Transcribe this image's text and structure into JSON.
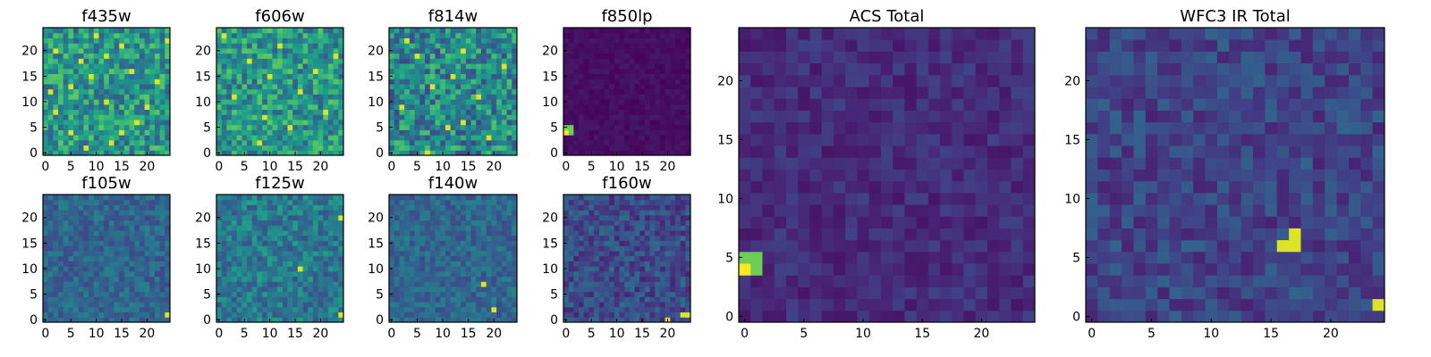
{
  "chart_data": [
    {
      "type": "heatmap",
      "title": "f435w",
      "xticks": [
        "0",
        "5",
        "10",
        "15",
        "20"
      ],
      "yticks": [
        "0",
        "5",
        "10",
        "15",
        "20"
      ],
      "xlim": [
        0,
        24
      ],
      "ylim": [
        0,
        24
      ],
      "grid": false,
      "colormap": "viridis",
      "grid_size": 25,
      "texture": "noisy-bright",
      "bright_pixels": [
        [
          1,
          8
        ],
        [
          2,
          13
        ],
        [
          4,
          5
        ],
        [
          4,
          15
        ],
        [
          6,
          18
        ],
        [
          8,
          2
        ],
        [
          9,
          20
        ],
        [
          10,
          12
        ],
        [
          12,
          1
        ],
        [
          13,
          5
        ],
        [
          14,
          22
        ],
        [
          15,
          9
        ],
        [
          16,
          17
        ],
        [
          18,
          7
        ],
        [
          19,
          12
        ],
        [
          20,
          2
        ],
        [
          21,
          15
        ],
        [
          22,
          24
        ],
        [
          23,
          10
        ]
      ]
    },
    {
      "type": "heatmap",
      "title": "f606w",
      "xticks": [
        "0",
        "5",
        "10",
        "15",
        "20"
      ],
      "yticks": [
        "0",
        "5",
        "10",
        "15",
        "20"
      ],
      "xlim": [
        0,
        24
      ],
      "ylim": [
        0,
        24
      ],
      "grid": false,
      "colormap": "viridis",
      "grid_size": 25,
      "texture": "noisy-bright",
      "bright_pixels": [
        [
          2,
          8
        ],
        [
          5,
          14
        ],
        [
          7,
          9
        ],
        [
          8,
          21
        ],
        [
          11,
          3
        ],
        [
          12,
          16
        ],
        [
          15,
          10
        ],
        [
          16,
          19
        ],
        [
          18,
          6
        ],
        [
          19,
          23
        ],
        [
          21,
          12
        ],
        [
          23,
          1
        ]
      ]
    },
    {
      "type": "heatmap",
      "title": "f814w",
      "xticks": [
        "0",
        "5",
        "10",
        "15",
        "20"
      ],
      "yticks": [
        "0",
        "5",
        "10",
        "15",
        "20"
      ],
      "xlim": [
        0,
        24
      ],
      "ylim": [
        0,
        24
      ],
      "grid": false,
      "colormap": "viridis",
      "grid_size": 25,
      "texture": "noisy-mid",
      "bright_pixels": [
        [
          0,
          7
        ],
        [
          3,
          19
        ],
        [
          5,
          11
        ],
        [
          6,
          14
        ],
        [
          9,
          2
        ],
        [
          11,
          17
        ],
        [
          13,
          8
        ],
        [
          15,
          12
        ],
        [
          17,
          22
        ],
        [
          19,
          5
        ],
        [
          20,
          14
        ],
        [
          22,
          3
        ]
      ]
    },
    {
      "type": "heatmap",
      "title": "f850lp",
      "xticks": [
        "0",
        "5",
        "10",
        "15",
        "20"
      ],
      "yticks": [
        "0",
        "5",
        "10",
        "15",
        "20"
      ],
      "xlim": [
        0,
        24
      ],
      "ylim": [
        0,
        24
      ],
      "grid": false,
      "colormap": "viridis",
      "grid_size": 25,
      "texture": "dark",
      "bright_pixels": [
        [
          4,
          0
        ],
        [
          5,
          0
        ],
        [
          5,
          1
        ],
        [
          4,
          1
        ]
      ]
    },
    {
      "type": "heatmap",
      "title": "f105w",
      "xticks": [
        "0",
        "5",
        "10",
        "15",
        "20"
      ],
      "yticks": [
        "0",
        "5",
        "10",
        "15",
        "20"
      ],
      "xlim": [
        0,
        24
      ],
      "ylim": [
        0,
        24
      ],
      "grid": false,
      "colormap": "viridis",
      "grid_size": 25,
      "texture": "smooth-mid",
      "bright_pixels": [
        [
          1,
          24
        ]
      ]
    },
    {
      "type": "heatmap",
      "title": "f125w",
      "xticks": [
        "0",
        "5",
        "10",
        "15",
        "20"
      ],
      "yticks": [
        "0",
        "5",
        "10",
        "15",
        "20"
      ],
      "xlim": [
        0,
        24
      ],
      "ylim": [
        0,
        24
      ],
      "grid": false,
      "colormap": "viridis",
      "grid_size": 25,
      "texture": "smooth-bright",
      "bright_pixels": [
        [
          1,
          24
        ],
        [
          10,
          16
        ],
        [
          20,
          24
        ]
      ]
    },
    {
      "type": "heatmap",
      "title": "f140w",
      "xticks": [
        "0",
        "5",
        "10",
        "15",
        "20"
      ],
      "yticks": [
        "0",
        "5",
        "10",
        "15",
        "20"
      ],
      "xlim": [
        0,
        24
      ],
      "ylim": [
        0,
        24
      ],
      "grid": false,
      "colormap": "viridis",
      "grid_size": 25,
      "texture": "smooth-mid",
      "bright_pixels": [
        [
          2,
          20
        ],
        [
          7,
          18
        ]
      ]
    },
    {
      "type": "heatmap",
      "title": "f160w",
      "xticks": [
        "0",
        "5",
        "10",
        "15",
        "20"
      ],
      "yticks": [
        "0",
        "5",
        "10",
        "15",
        "20"
      ],
      "xlim": [
        0,
        24
      ],
      "ylim": [
        0,
        24
      ],
      "grid": false,
      "colormap": "viridis",
      "grid_size": 25,
      "texture": "smooth-dark",
      "bright_pixels": [
        [
          0,
          20
        ],
        [
          1,
          24
        ],
        [
          1,
          23
        ]
      ]
    },
    {
      "type": "heatmap",
      "title": "ACS Total",
      "xticks": [
        "0",
        "5",
        "10",
        "15",
        "20"
      ],
      "yticks": [
        "0",
        "5",
        "10",
        "15",
        "20"
      ],
      "xlim": [
        0,
        24
      ],
      "ylim": [
        0,
        24
      ],
      "grid": false,
      "colormap": "viridis",
      "grid_size": 25,
      "texture": "acs-total",
      "bright_pixels": [
        [
          4,
          0
        ],
        [
          4,
          1
        ],
        [
          5,
          0
        ],
        [
          5,
          1
        ]
      ]
    },
    {
      "type": "heatmap",
      "title": "WFC3 IR Total",
      "xticks": [
        "0",
        "5",
        "10",
        "15",
        "20"
      ],
      "yticks": [
        "0",
        "5",
        "10",
        "15",
        "20"
      ],
      "xlim": [
        0,
        24
      ],
      "ylim": [
        0,
        24
      ],
      "grid": false,
      "colormap": "viridis",
      "grid_size": 25,
      "texture": "wfc3-total",
      "bright_pixels": [
        [
          1,
          24
        ],
        [
          6,
          16
        ],
        [
          6,
          17
        ],
        [
          7,
          17
        ]
      ]
    }
  ]
}
